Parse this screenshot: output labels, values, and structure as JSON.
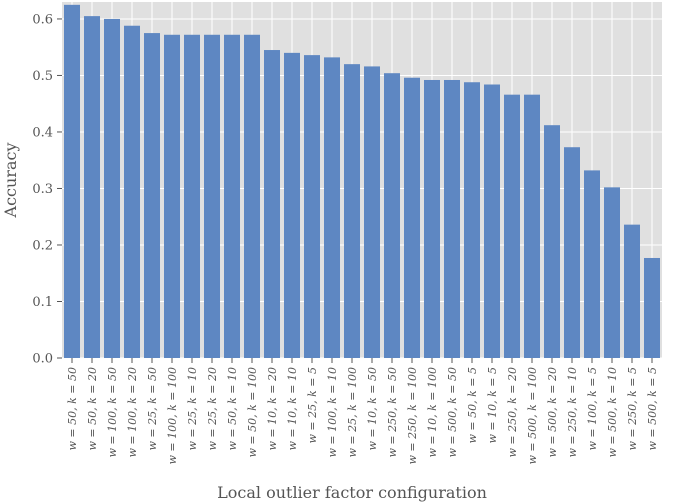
{
  "chart_data": {
    "type": "bar",
    "xlabel": "Local outlier factor configuration",
    "ylabel": "Accuracy",
    "ylim": [
      0,
      0.63
    ],
    "yticks": [
      "0.0",
      "0.1",
      "0.2",
      "0.3",
      "0.4",
      "0.5",
      "0.6"
    ],
    "grid": true,
    "categories": [
      "w = 50, k = 50",
      "w = 50, k = 20",
      "w = 100, k = 50",
      "w = 100, k = 20",
      "w = 25, k = 50",
      "w = 100, k = 100",
      "w = 25, k = 10",
      "w = 25, k = 20",
      "w = 50, k = 10",
      "w = 50, k = 100",
      "w = 10, k = 20",
      "w = 10, k = 10",
      "w = 25, k = 5",
      "w = 100, k = 10",
      "w = 25, k = 100",
      "w = 10, k = 50",
      "w = 250, k = 50",
      "w = 250, k = 100",
      "w = 10, k = 100",
      "w = 500, k = 50",
      "w = 50, k = 5",
      "w = 10, k = 5",
      "w = 250, k = 20",
      "w = 500, k = 100",
      "w = 500, k = 20",
      "w = 250, k = 10",
      "w = 100, k = 5",
      "w = 500, k = 10",
      "w = 250, k = 5",
      "w = 500, k = 5"
    ],
    "values": [
      0.625,
      0.605,
      0.6,
      0.588,
      0.575,
      0.572,
      0.572,
      0.572,
      0.572,
      0.572,
      0.545,
      0.54,
      0.536,
      0.532,
      0.52,
      0.516,
      0.504,
      0.496,
      0.492,
      0.492,
      0.488,
      0.484,
      0.466,
      0.466,
      0.412,
      0.373,
      0.332,
      0.302,
      0.236,
      0.177
    ],
    "colors": {
      "bar": "#5e87c2",
      "plot_bg": "#e0e0e0",
      "grid": "#ffffff"
    }
  }
}
